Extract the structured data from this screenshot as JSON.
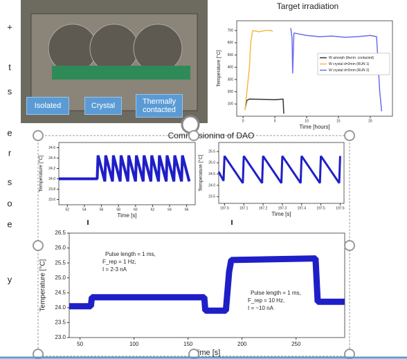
{
  "slide": {
    "side_text": [
      "+",
      "t",
      "s",
      "e",
      "r",
      "s",
      "o",
      "e",
      "y"
    ],
    "photo_labels": [
      "Isolated",
      "Crystal",
      "Thermally contacted"
    ],
    "section_title": "Commissioning of DAQ"
  },
  "chart_data": [
    {
      "type": "line",
      "title": "Target irradiation",
      "xlabel": "Time [hours]",
      "ylabel": "Temperature [°C]",
      "xlim": [
        -1,
        23.5
      ],
      "ylim": [
        0,
        780
      ],
      "xticks": [
        0,
        5,
        10,
        15,
        20
      ],
      "yticks": [
        100,
        200,
        300,
        400,
        500,
        600,
        700
      ],
      "legend": "center right",
      "series": [
        {
          "name": "W amorph (therm. contacted)",
          "color": "#333333",
          "x": [
            0.3,
            0.6,
            1,
            3,
            5,
            6.3,
            6.4
          ],
          "values": [
            60,
            130,
            140,
            138,
            135,
            140,
            20
          ]
        },
        {
          "name": "W crystal d=2mm (RUN 1)",
          "color": "#f5b942",
          "x": [
            0.3,
            0.6,
            1,
            1.2,
            1.5,
            2.5,
            3.5,
            4.5,
            4.6
          ],
          "values": [
            50,
            200,
            400,
            600,
            700,
            690,
            700,
            700,
            690
          ]
        },
        {
          "name": "W crystal d=2mm (RUN 2)",
          "color": "#6b6bf0",
          "x": [
            7.5,
            7.7,
            7.8,
            8,
            10,
            12,
            14,
            16,
            18,
            20,
            21,
            21.5,
            21.8
          ],
          "values": [
            720,
            640,
            350,
            680,
            660,
            650,
            655,
            645,
            650,
            660,
            650,
            200,
            40
          ]
        }
      ]
    },
    {
      "type": "line",
      "xlabel": "Time [s]",
      "ylabel": "Temperature [°C]",
      "xlim": [
        51,
        67
      ],
      "ylim": [
        23.5,
        24.7
      ],
      "xticks": [
        52,
        54,
        56,
        58,
        60,
        62,
        64,
        66
      ],
      "yticks": [
        23.6,
        23.8,
        {
          "value": 24,
          "label": "24.0"
        },
        24.2,
        24.4,
        24.6
      ],
      "series": [
        {
          "color": "#1f1fc8",
          "x": [
            51,
            55.5,
            55.6,
            56.4,
            56.5,
            57.3,
            57.4,
            58.2,
            58.3,
            59.1,
            59.2,
            60.0,
            60.1,
            60.9,
            61.0,
            61.8,
            61.9,
            62.7,
            62.8,
            63.6,
            63.7,
            64.5,
            64.6,
            65.4,
            65.5,
            66.3
          ],
          "values": [
            24.0,
            24.0,
            24.45,
            23.95,
            24.45,
            23.95,
            24.45,
            23.95,
            24.45,
            23.95,
            24.45,
            23.95,
            24.45,
            23.95,
            24.45,
            23.95,
            24.45,
            23.95,
            24.45,
            23.95,
            24.45,
            23.95,
            24.45,
            23.95,
            24.45,
            23.95
          ]
        }
      ]
    },
    {
      "type": "line",
      "xlabel": "Time [s]",
      "ylabel": "Temperature [°C]",
      "xlim": [
        196.97,
        197.62
      ],
      "ylim": [
        23.2,
        25.9
      ],
      "xticks": [
        {
          "value": 197,
          "label": "197.0"
        },
        197.1,
        197.2,
        197.3,
        197.4,
        197.5,
        197.6
      ],
      "yticks": [
        23.5,
        {
          "value": 24,
          "label": "24.0"
        },
        24.5,
        {
          "value": 25,
          "label": "25.0"
        },
        25.5
      ],
      "series": [
        {
          "color": "#1f1fc8",
          "x": [
            196.97,
            196.995,
            197.0,
            197.095,
            197.1,
            197.195,
            197.2,
            197.295,
            197.3,
            197.395,
            197.4,
            197.495,
            197.5,
            197.595,
            197.6
          ],
          "values": [
            24.6,
            24.2,
            25.3,
            24.1,
            25.3,
            24.1,
            25.3,
            24.1,
            25.3,
            24.1,
            25.3,
            24.1,
            25.3,
            24.1,
            25.3
          ]
        }
      ]
    },
    {
      "type": "line",
      "xlabel": "Time [s]",
      "ylabel": "Temperature [°C]",
      "xlim": [
        40,
        295
      ],
      "ylim": [
        23,
        26.5
      ],
      "xticks": [
        50,
        100,
        150,
        200,
        250
      ],
      "yticks": [
        {
          "value": 23,
          "label": "23.0"
        },
        23.5,
        {
          "value": 24,
          "label": "24.0"
        },
        24.5,
        {
          "value": 25,
          "label": "25.0"
        },
        25.5,
        {
          "value": 26,
          "label": "26.0"
        },
        26.5
      ],
      "series": [
        {
          "color": "#1f1fc8",
          "x": [
            40,
            60,
            61,
            165,
            166,
            185,
            188,
            190,
            268,
            270,
            295
          ],
          "values": [
            24.05,
            24.05,
            24.35,
            24.35,
            23.9,
            23.9,
            25.2,
            25.6,
            25.65,
            24.2,
            24.2
          ]
        }
      ],
      "annotations": [
        [
          "Pulse length = 1 ms,",
          "F_rep = 1 Hz,",
          "I = 2-3 nA"
        ],
        [
          "Pulse length = 1 ms,",
          "F_rep = 10 Hz,",
          "I = ~10 nA"
        ]
      ]
    }
  ]
}
